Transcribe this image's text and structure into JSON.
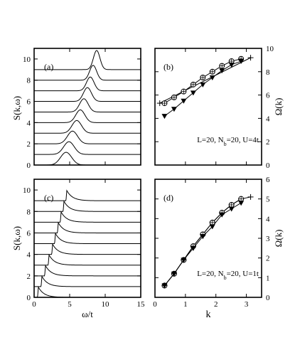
{
  "figure": {
    "x_label_bottom_left": "ω/t",
    "x_label_bottom_right": "k",
    "y_label_left": "S(k,ω)",
    "y_label_right": "Ω(k)"
  },
  "chart_data": [
    {
      "id": "a",
      "type": "line",
      "panel_label": "(a)",
      "ylabel": "S(k,ω)",
      "xlim": [
        0,
        15
      ],
      "ylim": [
        0,
        11
      ],
      "xticks": [
        0,
        5,
        10,
        15
      ],
      "yticks": [
        0,
        2,
        4,
        6,
        8,
        10
      ],
      "show_xtick_labels": false,
      "description": "stacked spectra, baseline offsets 0..9, Gaussian-like peak per curve",
      "series": [
        {
          "offset": 0,
          "peak_x": 4.5,
          "height": 1.2,
          "width": 1.1
        },
        {
          "offset": 1,
          "peak_x": 4.9,
          "height": 1.2,
          "width": 1.05
        },
        {
          "offset": 2,
          "peak_x": 5.4,
          "height": 1.2,
          "width": 1.0
        },
        {
          "offset": 3,
          "peak_x": 6.0,
          "height": 1.2,
          "width": 0.95
        },
        {
          "offset": 4,
          "peak_x": 6.5,
          "height": 1.2,
          "width": 0.9
        },
        {
          "offset": 5,
          "peak_x": 7.0,
          "height": 1.25,
          "width": 0.85
        },
        {
          "offset": 6,
          "peak_x": 7.5,
          "height": 1.3,
          "width": 0.8
        },
        {
          "offset": 7,
          "peak_x": 7.9,
          "height": 1.3,
          "width": 0.75
        },
        {
          "offset": 8,
          "peak_x": 8.3,
          "height": 1.4,
          "width": 0.7
        },
        {
          "offset": 9,
          "peak_x": 8.8,
          "height": 1.8,
          "width": 0.65
        }
      ]
    },
    {
      "id": "b",
      "type": "line",
      "panel_label": "(b)",
      "annotation": "L=20, N_b=20, U=4t",
      "ylabel": "Ω(k)",
      "xlim": [
        0,
        3.5
      ],
      "ylim": [
        0,
        10
      ],
      "xticks": [
        0,
        1,
        2,
        3
      ],
      "yticks": [
        0,
        2,
        4,
        6,
        8,
        10
      ],
      "show_xtick_labels": false,
      "series": [
        {
          "marker": "plus-line",
          "x": [
            0.157,
            3.14
          ],
          "y": [
            5.3,
            9.2
          ]
        },
        {
          "marker": "open-circle",
          "x": [
            0.314,
            0.628,
            0.942,
            1.257,
            1.571,
            1.885,
            2.199,
            2.513,
            2.827
          ],
          "y": [
            5.3,
            5.8,
            6.3,
            6.9,
            7.5,
            8.0,
            8.5,
            8.9,
            9.1
          ]
        },
        {
          "marker": "filled-triangle",
          "x": [
            0.314,
            0.628,
            0.942,
            1.257,
            1.571,
            1.885,
            2.199,
            2.513,
            2.827
          ],
          "y": [
            4.2,
            4.8,
            5.5,
            6.2,
            6.9,
            7.5,
            8.1,
            8.6,
            8.9
          ]
        }
      ]
    },
    {
      "id": "c",
      "type": "line",
      "panel_label": "(c)",
      "ylabel": "S(k,ω)",
      "xlabel": "ω/t",
      "xlim": [
        0,
        15
      ],
      "ylim": [
        0,
        11
      ],
      "xticks": [
        0,
        5,
        10,
        15
      ],
      "yticks": [
        0,
        2,
        4,
        6,
        8,
        10
      ],
      "show_xtick_labels": true,
      "description": "stacked spectra, sharp peak then slow decay",
      "series": [
        {
          "offset": 0,
          "peak_x": 0.6
        },
        {
          "offset": 1,
          "peak_x": 1.1
        },
        {
          "offset": 2,
          "peak_x": 1.6
        },
        {
          "offset": 3,
          "peak_x": 2.1
        },
        {
          "offset": 4,
          "peak_x": 2.6
        },
        {
          "offset": 5,
          "peak_x": 3.0
        },
        {
          "offset": 6,
          "peak_x": 3.4
        },
        {
          "offset": 7,
          "peak_x": 3.8
        },
        {
          "offset": 8,
          "peak_x": 4.2
        },
        {
          "offset": 9,
          "peak_x": 4.6
        }
      ]
    },
    {
      "id": "d",
      "type": "line",
      "panel_label": "(d)",
      "annotation": "L=20, N_b=20, U=1t",
      "ylabel": "Ω(k)",
      "xlabel": "k",
      "xlim": [
        0,
        3.5
      ],
      "ylim": [
        0,
        6
      ],
      "xticks": [
        0,
        1,
        2,
        3
      ],
      "yticks": [
        0,
        1,
        2,
        3,
        4,
        5,
        6
      ],
      "show_xtick_labels": true,
      "series": [
        {
          "marker": "plus-line",
          "x": [
            0.314,
            0.628,
            0.942,
            1.257,
            1.571,
            1.885,
            2.199,
            2.513,
            2.827,
            3.14
          ],
          "y": [
            0.6,
            1.2,
            1.9,
            2.6,
            3.2,
            3.8,
            4.3,
            4.7,
            5.0,
            5.1
          ]
        },
        {
          "marker": "open-circle",
          "x": [
            0.314,
            0.628,
            0.942,
            1.257,
            1.571,
            1.885,
            2.199,
            2.513,
            2.827
          ],
          "y": [
            0.6,
            1.2,
            1.9,
            2.6,
            3.2,
            3.8,
            4.3,
            4.7,
            5.0
          ]
        },
        {
          "marker": "filled-triangle",
          "x": [
            0.314,
            0.628,
            0.942,
            1.257,
            1.571,
            1.885,
            2.199,
            2.513,
            2.827
          ],
          "y": [
            0.6,
            1.2,
            1.9,
            2.5,
            3.1,
            3.6,
            4.2,
            4.5,
            4.8
          ]
        }
      ]
    }
  ]
}
